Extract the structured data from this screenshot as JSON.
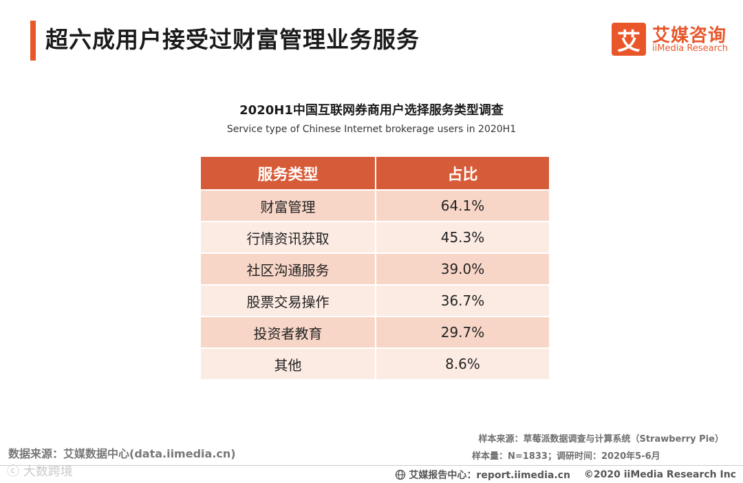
{
  "header": {
    "title": "超六成用户接受过财富管理业务服务",
    "accent_color": "#e8562a"
  },
  "logo": {
    "mark": "艾",
    "name_cn": "艾媒咨询",
    "name_en": "iiMedia Research"
  },
  "chart_data": {
    "type": "table",
    "title": "2020H1中国互联网券商用户选择服务类型调查",
    "subtitle": "Service type of Chinese Internet brokerage users in 2020H1",
    "columns": [
      "服务类型",
      "占比"
    ],
    "rows": [
      {
        "category": "财富管理",
        "value": "64.1%"
      },
      {
        "category": "行情资讯获取",
        "value": "45.3%"
      },
      {
        "category": "社区沟通服务",
        "value": "39.0%"
      },
      {
        "category": "股票交易操作",
        "value": "36.7%"
      },
      {
        "category": "投资者教育",
        "value": "29.7%"
      },
      {
        "category": "其他",
        "value": "8.6%"
      }
    ],
    "header_color": "#d65b38",
    "row_colors": [
      "#f8d6c7",
      "#fcebe3"
    ]
  },
  "footer": {
    "data_source": "数据来源：艾媒数据中心(data.iimedia.cn)",
    "sample_source": "样本来源：草莓派数据调查与计算系统（Strawberry Pie）",
    "sample_size": "样本量：N=1833；调研时间：2020年5-6月",
    "report_center": "艾媒报告中心：report.iimedia.cn",
    "copyright": "©2020  iiMedia Research  Inc",
    "watermark": "ⓒ 大数跨境"
  }
}
